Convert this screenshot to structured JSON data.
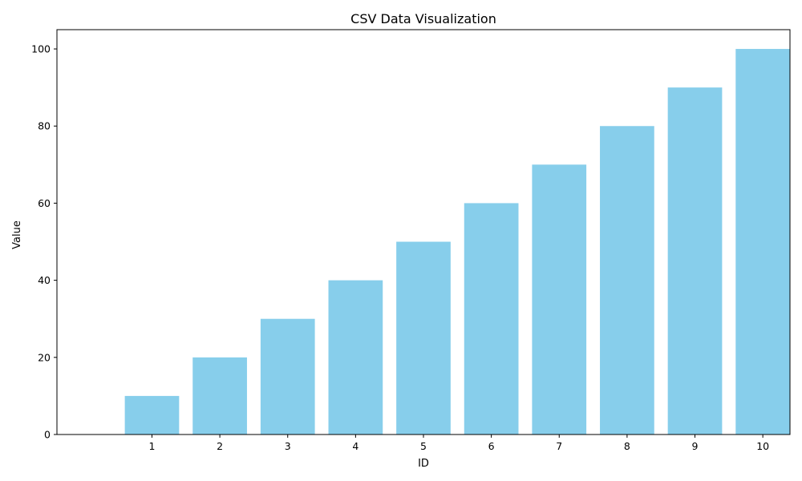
{
  "chart_data": {
    "type": "bar",
    "title": "CSV Data Visualization",
    "xlabel": "ID",
    "ylabel": "Value",
    "categories": [
      "1",
      "2",
      "3",
      "4",
      "5",
      "6",
      "7",
      "8",
      "9",
      "10"
    ],
    "values": [
      10,
      20,
      30,
      40,
      50,
      60,
      70,
      80,
      90,
      100
    ],
    "ylim": [
      0,
      105
    ],
    "yticks": [
      0,
      20,
      40,
      60,
      80,
      100
    ],
    "bar_color": "#87CEEB",
    "grid": false,
    "legend": "none"
  }
}
